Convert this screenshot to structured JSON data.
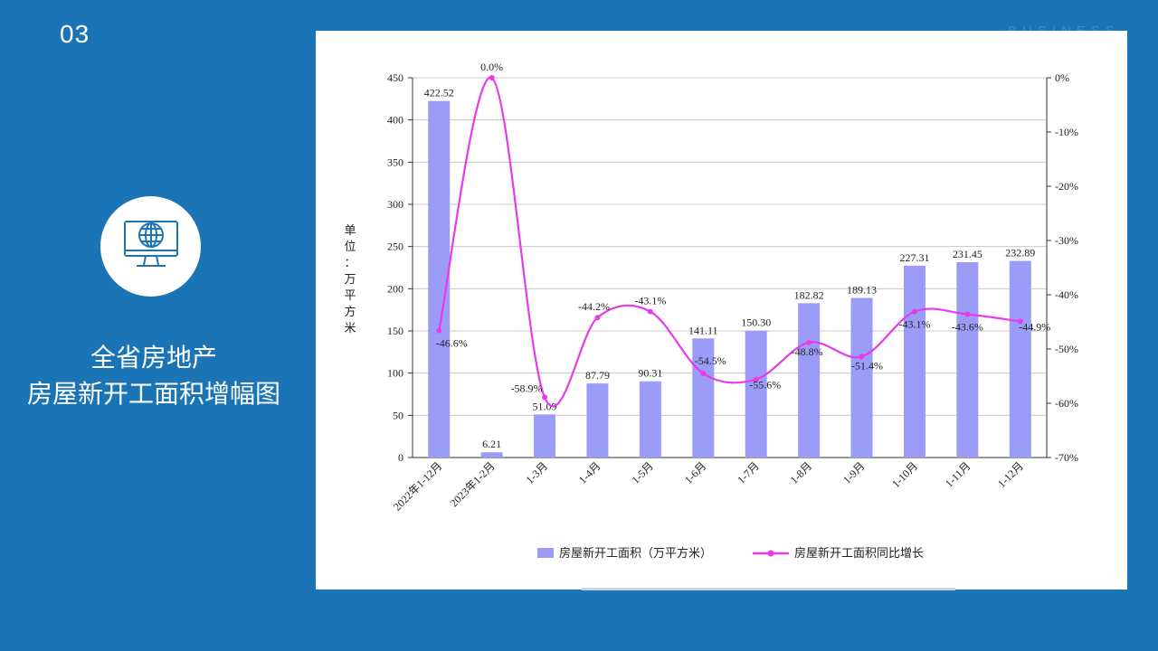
{
  "slide": {
    "number": "03",
    "watermark": "BUSINESS",
    "title_line1": "全省房地产",
    "title_line2": "房屋新开工面积增幅图",
    "icon": "globe-monitor-icon"
  },
  "chart_data": {
    "type": "bar+line",
    "title": "",
    "categories": [
      "2022年1-12月",
      "2023年1-2月",
      "1-3月",
      "1-4月",
      "1-5月",
      "1-6月",
      "1-7月",
      "1-8月",
      "1-9月",
      "1-10月",
      "1-11月",
      "1-12月"
    ],
    "left_axis": {
      "label": "单位：万平方米",
      "label_chars": [
        "单",
        "位",
        "：",
        "万",
        "平",
        "方",
        "米"
      ],
      "ylim": [
        0,
        450
      ],
      "ticks": [
        0,
        50,
        100,
        150,
        200,
        250,
        300,
        350,
        400,
        450
      ]
    },
    "right_axis": {
      "ylim": [
        -70,
        0
      ],
      "ticks": [
        0,
        -10,
        -20,
        -30,
        -40,
        -50,
        -60,
        -70
      ],
      "tick_labels": [
        "0%",
        "-10%",
        "-20%",
        "-30%",
        "-40%",
        "-50%",
        "-60%",
        "-70%"
      ]
    },
    "series": [
      {
        "name": "房屋新开工面积（万平方米）",
        "type": "bar",
        "axis": "left",
        "color": "#9b9cf7",
        "values": [
          422.52,
          6.21,
          51.09,
          87.79,
          90.31,
          141.11,
          150.3,
          182.82,
          189.13,
          227.31,
          231.45,
          232.89
        ],
        "labels": [
          "422.52",
          "6.21",
          "51.09",
          "87.79",
          "90.31",
          "141.11",
          "150.30",
          "182.82",
          "189.13",
          "227.31",
          "231.45",
          "232.89"
        ]
      },
      {
        "name": "房屋新开工面积同比增长",
        "type": "line",
        "axis": "right",
        "color": "#e83ae8",
        "values": [
          -46.6,
          0.0,
          -58.9,
          -44.2,
          -43.1,
          -54.5,
          -55.6,
          -48.8,
          -51.4,
          -43.1,
          -43.6,
          -44.9
        ],
        "labels": [
          "-46.6%",
          "0.0%",
          "-58.9%",
          "-44.2%",
          "-43.1%",
          "-54.5%",
          "-55.6%",
          "-48.8%",
          "-51.4%",
          "-43.1%",
          "-43.6%",
          "-44.9%"
        ]
      }
    ],
    "grid": true,
    "legend": "bottom"
  }
}
